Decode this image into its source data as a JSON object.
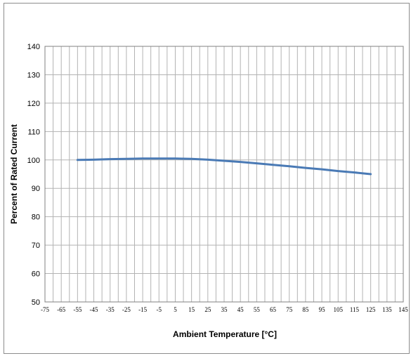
{
  "chart_data": {
    "type": "line",
    "title": "",
    "xlabel": "Ambient Temperature [°C]",
    "ylabel": "Percent of Rated Current",
    "xlim": [
      -75,
      145
    ],
    "ylim": [
      50,
      140
    ],
    "x_ticks": [
      "-75",
      "-65",
      "-55",
      "-45",
      "-35",
      "-25",
      "-15",
      "-5",
      "5",
      "15",
      "25",
      "35",
      "45",
      "55",
      "65",
      "75",
      "85",
      "95",
      "105",
      "115",
      "125",
      "135",
      "145"
    ],
    "y_ticks": [
      "50",
      "60",
      "70",
      "80",
      "90",
      "100",
      "110",
      "120",
      "130",
      "140"
    ],
    "grid": true,
    "series": [
      {
        "color": "#4a7ab5",
        "x": [
          -55,
          -45,
          -35,
          -25,
          -15,
          -5,
          5,
          15,
          25,
          35,
          45,
          55,
          65,
          75,
          85,
          95,
          105,
          115,
          125
        ],
        "y": [
          100.0,
          100.1,
          100.3,
          100.4,
          100.5,
          100.5,
          100.5,
          100.4,
          100.1,
          99.7,
          99.3,
          98.8,
          98.3,
          97.8,
          97.2,
          96.7,
          96.1,
          95.6,
          95.0
        ]
      }
    ]
  }
}
